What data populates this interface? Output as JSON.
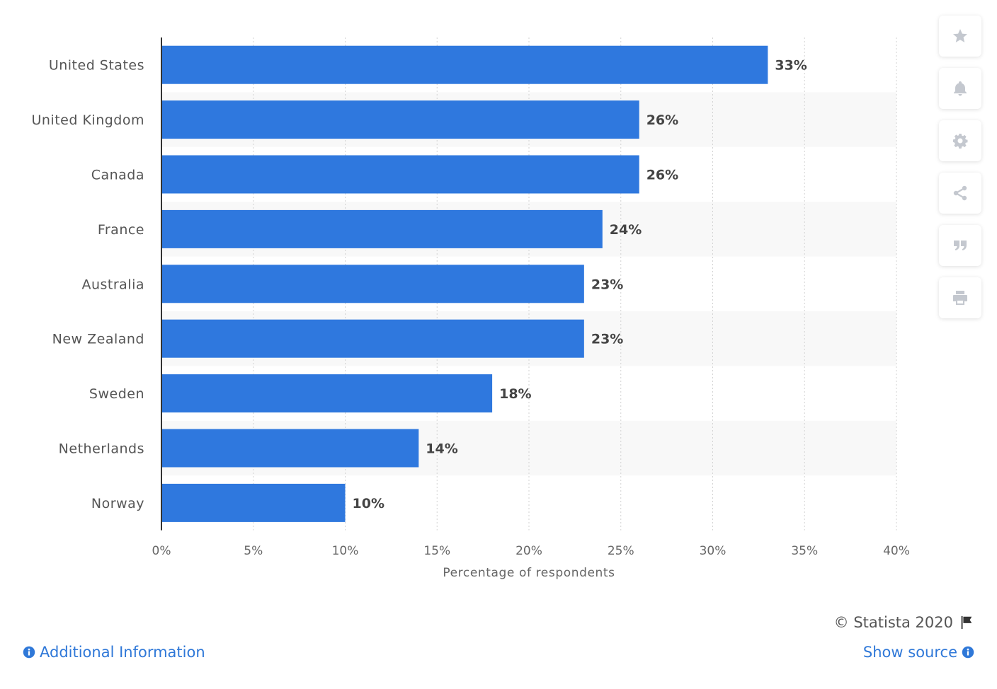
{
  "chart_data": {
    "type": "bar",
    "orientation": "horizontal",
    "categories": [
      "United States",
      "United Kingdom",
      "Canada",
      "France",
      "Australia",
      "New Zealand",
      "Sweden",
      "Netherlands",
      "Norway"
    ],
    "values": [
      33,
      26,
      26,
      24,
      23,
      23,
      18,
      14,
      10
    ],
    "value_labels": [
      "33%",
      "26%",
      "26%",
      "24%",
      "23%",
      "23%",
      "18%",
      "14%",
      "10%"
    ],
    "xlabel": "Percentage of respondents",
    "xlim": [
      0,
      40
    ],
    "xticks": [
      0,
      5,
      10,
      15,
      20,
      25,
      30,
      35,
      40
    ],
    "xtick_labels": [
      "0%",
      "5%",
      "10%",
      "15%",
      "20%",
      "25%",
      "30%",
      "35%",
      "40%"
    ],
    "grid": true,
    "bar_color": "#2f78de"
  },
  "sidebar": {
    "icons": [
      "star-icon",
      "bell-icon",
      "gear-icon",
      "share-icon",
      "quote-icon",
      "print-icon"
    ]
  },
  "footer": {
    "credit": "© Statista 2020",
    "additional_info": "Additional Information",
    "show_source": "Show source"
  },
  "colors": {
    "accent": "#2f78d8",
    "icon": "#c4c8cf",
    "text": "#555555"
  }
}
